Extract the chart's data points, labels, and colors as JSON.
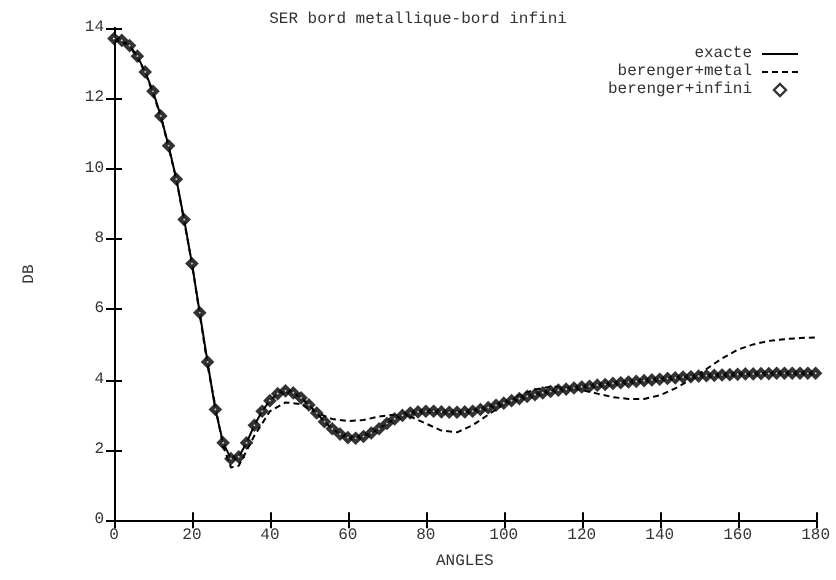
{
  "chart_data": {
    "type": "line",
    "title": "SER bord metallique-bord infini",
    "xlabel": "ANGLES",
    "ylabel": "DB",
    "xlim": [
      0,
      180
    ],
    "ylim": [
      0,
      14
    ],
    "xticks": [
      0,
      20,
      40,
      60,
      80,
      100,
      120,
      140,
      160,
      180
    ],
    "yticks": [
      0,
      2,
      4,
      6,
      8,
      10,
      12,
      14
    ],
    "grid": false,
    "legend": "top right",
    "series": [
      {
        "name": "exacte",
        "color": "#000000",
        "line_style": "solid",
        "marker": "none",
        "x": [
          0,
          2,
          4,
          6,
          8,
          10,
          12,
          14,
          16,
          18,
          20,
          22,
          24,
          26,
          28,
          30,
          32,
          34,
          36,
          38,
          40,
          42,
          44,
          46,
          48,
          50,
          52,
          54,
          56,
          58,
          60,
          62,
          64,
          66,
          68,
          70,
          72,
          74,
          76,
          78,
          80,
          82,
          84,
          86,
          88,
          90,
          92,
          94,
          96,
          98,
          100,
          102,
          104,
          106,
          108,
          110,
          112,
          114,
          116,
          118,
          120,
          122,
          124,
          126,
          128,
          130,
          132,
          134,
          136,
          138,
          140,
          142,
          144,
          146,
          148,
          150,
          152,
          154,
          156,
          158,
          160,
          162,
          164,
          166,
          168,
          170,
          172,
          174,
          176,
          178,
          180
        ],
        "values": [
          13.7,
          13.65,
          13.5,
          13.2,
          12.75,
          12.2,
          11.5,
          10.65,
          9.7,
          8.55,
          7.3,
          5.9,
          4.5,
          3.15,
          2.2,
          1.75,
          1.8,
          2.2,
          2.7,
          3.1,
          3.4,
          3.6,
          3.68,
          3.62,
          3.48,
          3.28,
          3.05,
          2.8,
          2.6,
          2.45,
          2.35,
          2.33,
          2.38,
          2.48,
          2.6,
          2.75,
          2.88,
          2.98,
          3.05,
          3.08,
          3.1,
          3.1,
          3.08,
          3.07,
          3.07,
          3.08,
          3.1,
          3.15,
          3.2,
          3.27,
          3.33,
          3.4,
          3.46,
          3.52,
          3.57,
          3.62,
          3.66,
          3.7,
          3.73,
          3.76,
          3.79,
          3.81,
          3.84,
          3.86,
          3.89,
          3.91,
          3.93,
          3.95,
          3.97,
          3.99,
          4.01,
          4.03,
          4.05,
          4.07,
          4.08,
          4.1,
          4.11,
          4.12,
          4.13,
          4.14,
          4.15,
          4.16,
          4.16,
          4.17,
          4.17,
          4.18,
          4.18,
          4.18,
          4.18,
          4.18,
          4.18
        ]
      },
      {
        "name": "berenger+metal",
        "color": "#000000",
        "line_style": "dashed",
        "marker": "none",
        "x": [
          0,
          4,
          8,
          12,
          16,
          20,
          24,
          28,
          30,
          32,
          36,
          40,
          44,
          48,
          52,
          56,
          60,
          64,
          68,
          72,
          76,
          80,
          84,
          88,
          92,
          96,
          100,
          104,
          108,
          112,
          116,
          120,
          124,
          128,
          132,
          136,
          140,
          144,
          148,
          152,
          156,
          160,
          164,
          168,
          172,
          176,
          180
        ],
        "values": [
          13.7,
          13.5,
          12.75,
          11.5,
          9.7,
          7.3,
          4.4,
          2.1,
          1.5,
          1.55,
          2.4,
          3.1,
          3.35,
          3.3,
          3.05,
          2.88,
          2.82,
          2.85,
          2.95,
          3.0,
          2.95,
          2.75,
          2.55,
          2.5,
          2.7,
          3.0,
          3.3,
          3.55,
          3.72,
          3.8,
          3.78,
          3.7,
          3.6,
          3.5,
          3.45,
          3.45,
          3.55,
          3.75,
          4.0,
          4.3,
          4.6,
          4.85,
          5.0,
          5.1,
          5.15,
          5.18,
          5.2
        ]
      },
      {
        "name": "berenger+infini",
        "color": "#000000",
        "type": "scatter",
        "marker": "diamond",
        "x": [
          0,
          2,
          4,
          6,
          8,
          10,
          12,
          14,
          16,
          18,
          20,
          22,
          24,
          26,
          28,
          30,
          32,
          34,
          36,
          38,
          40,
          42,
          44,
          46,
          48,
          50,
          52,
          54,
          56,
          58,
          60,
          62,
          64,
          66,
          68,
          70,
          72,
          74,
          76,
          78,
          80,
          82,
          84,
          86,
          88,
          90,
          92,
          94,
          96,
          98,
          100,
          102,
          104,
          106,
          108,
          110,
          112,
          114,
          116,
          118,
          120,
          122,
          124,
          126,
          128,
          130,
          132,
          134,
          136,
          138,
          140,
          142,
          144,
          146,
          148,
          150,
          152,
          154,
          156,
          158,
          160,
          162,
          164,
          166,
          168,
          170,
          172,
          174,
          176,
          178,
          180
        ],
        "values": [
          13.7,
          13.65,
          13.5,
          13.2,
          12.75,
          12.2,
          11.5,
          10.65,
          9.7,
          8.55,
          7.3,
          5.9,
          4.5,
          3.15,
          2.2,
          1.75,
          1.8,
          2.2,
          2.7,
          3.1,
          3.4,
          3.6,
          3.68,
          3.62,
          3.48,
          3.28,
          3.05,
          2.8,
          2.6,
          2.45,
          2.35,
          2.33,
          2.38,
          2.48,
          2.6,
          2.75,
          2.88,
          2.98,
          3.05,
          3.08,
          3.1,
          3.1,
          3.08,
          3.07,
          3.07,
          3.08,
          3.1,
          3.15,
          3.2,
          3.27,
          3.33,
          3.4,
          3.46,
          3.52,
          3.57,
          3.62,
          3.66,
          3.7,
          3.73,
          3.76,
          3.79,
          3.81,
          3.84,
          3.86,
          3.89,
          3.91,
          3.93,
          3.95,
          3.97,
          3.99,
          4.01,
          4.03,
          4.05,
          4.07,
          4.08,
          4.1,
          4.11,
          4.12,
          4.13,
          4.14,
          4.15,
          4.16,
          4.16,
          4.17,
          4.17,
          4.18,
          4.18,
          4.18,
          4.18,
          4.18,
          4.18
        ]
      }
    ]
  }
}
